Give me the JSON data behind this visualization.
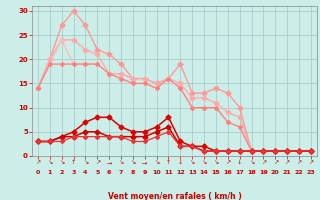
{
  "bg_color": "#cceee8",
  "grid_color": "#aacccc",
  "xlabel": "Vent moyen/en rafales ( km/h )",
  "xlabel_color": "#cc0000",
  "tick_color": "#cc0000",
  "lines": [
    {
      "color": "#ff9999",
      "marker": "D",
      "markersize": 2.5,
      "linewidth": 1.0,
      "data_x": [
        0,
        1,
        2,
        3,
        4,
        5,
        6,
        7,
        8,
        9,
        10,
        11,
        12,
        13,
        14,
        15,
        16,
        17,
        18,
        19,
        20,
        21,
        22,
        23
      ],
      "data_y": [
        14,
        20,
        27,
        30,
        27,
        22,
        21,
        19,
        16,
        16,
        15,
        16,
        19,
        13,
        13,
        14,
        13,
        10,
        1,
        1,
        1,
        1,
        1,
        1
      ]
    },
    {
      "color": "#ffaaaa",
      "marker": "D",
      "markersize": 2.5,
      "linewidth": 1.0,
      "data_x": [
        0,
        1,
        2,
        3,
        4,
        5,
        6,
        7,
        8,
        9,
        10,
        11,
        12,
        13,
        14,
        15,
        16,
        17,
        18,
        19,
        20,
        21,
        22,
        23
      ],
      "data_y": [
        14,
        20,
        24,
        24,
        22,
        21,
        17,
        17,
        16,
        16,
        15,
        16,
        15,
        12,
        12,
        11,
        9,
        8,
        1,
        1,
        1,
        1,
        1,
        1
      ]
    },
    {
      "color": "#ffbbbb",
      "marker": "D",
      "markersize": 2.0,
      "linewidth": 0.9,
      "data_x": [
        0,
        2,
        3,
        4,
        5,
        6,
        7,
        8,
        9,
        10,
        11,
        12,
        13,
        14,
        15,
        16,
        17,
        18,
        19,
        20,
        21,
        22,
        23
      ],
      "data_y": [
        14,
        24,
        19,
        19,
        19,
        17,
        16,
        15,
        15,
        14,
        16,
        14,
        10,
        10,
        10,
        7,
        6,
        1,
        1,
        1,
        1,
        1,
        1
      ]
    },
    {
      "color": "#ff8080",
      "marker": "D",
      "markersize": 2.0,
      "linewidth": 0.9,
      "data_x": [
        0,
        1,
        2,
        3,
        4,
        5,
        6,
        7,
        8,
        9,
        10,
        11,
        12,
        13,
        14,
        15,
        16,
        17,
        18,
        19,
        20,
        21,
        22,
        23
      ],
      "data_y": [
        14,
        19,
        19,
        19,
        19,
        19,
        17,
        16,
        15,
        15,
        14,
        16,
        14,
        10,
        10,
        10,
        7,
        6,
        1,
        1,
        1,
        1,
        1,
        1
      ]
    },
    {
      "color": "#dd0000",
      "marker": "D",
      "markersize": 2.5,
      "linewidth": 1.1,
      "data_x": [
        0,
        1,
        2,
        3,
        4,
        5,
        6,
        7,
        8,
        9,
        10,
        11,
        12,
        13,
        14,
        15,
        16,
        17,
        18,
        19,
        20,
        21,
        22,
        23
      ],
      "data_y": [
        3,
        3,
        4,
        5,
        7,
        8,
        8,
        6,
        5,
        5,
        6,
        8,
        3,
        2,
        2,
        1,
        1,
        1,
        1,
        1,
        1,
        1,
        1,
        1
      ]
    },
    {
      "color": "#cc0000",
      "marker": "D",
      "markersize": 2.5,
      "linewidth": 1.1,
      "data_x": [
        0,
        1,
        2,
        3,
        4,
        5,
        6,
        7,
        8,
        9,
        10,
        11,
        12,
        13,
        14,
        15,
        16,
        17,
        18,
        19,
        20,
        21,
        22,
        23
      ],
      "data_y": [
        3,
        3,
        4,
        4,
        5,
        5,
        4,
        4,
        4,
        4,
        5,
        6,
        2,
        2,
        1,
        1,
        1,
        1,
        1,
        1,
        1,
        1,
        1,
        1
      ]
    },
    {
      "color": "#ee3333",
      "marker": "D",
      "markersize": 2.0,
      "linewidth": 0.9,
      "data_x": [
        0,
        1,
        2,
        3,
        4,
        5,
        6,
        7,
        8,
        9,
        10,
        11,
        12,
        13,
        14,
        15,
        16,
        17,
        18,
        19,
        20,
        21,
        22,
        23
      ],
      "data_y": [
        3,
        3,
        3,
        4,
        4,
        4,
        4,
        4,
        3,
        3,
        4,
        5,
        2,
        2,
        1,
        1,
        1,
        1,
        1,
        1,
        1,
        1,
        1,
        1
      ]
    }
  ],
  "arrow_labels": [
    "↗",
    "↘",
    "↘",
    "↑",
    "↘",
    "↗",
    "→",
    "↘",
    "↘",
    "→",
    "↘",
    "↑",
    "↓",
    "↘",
    "↘",
    "↘",
    "↗",
    "↓",
    "↘",
    "↗",
    "↗",
    "↗",
    "↗",
    "↗"
  ],
  "yticks": [
    0,
    5,
    10,
    15,
    20,
    25,
    30
  ],
  "xticks": [
    0,
    1,
    2,
    3,
    4,
    5,
    6,
    7,
    8,
    9,
    10,
    11,
    12,
    13,
    14,
    15,
    16,
    17,
    18,
    19,
    20,
    21,
    22,
    23
  ],
  "xlim": [
    -0.5,
    23.5
  ],
  "ylim": [
    0,
    31
  ]
}
